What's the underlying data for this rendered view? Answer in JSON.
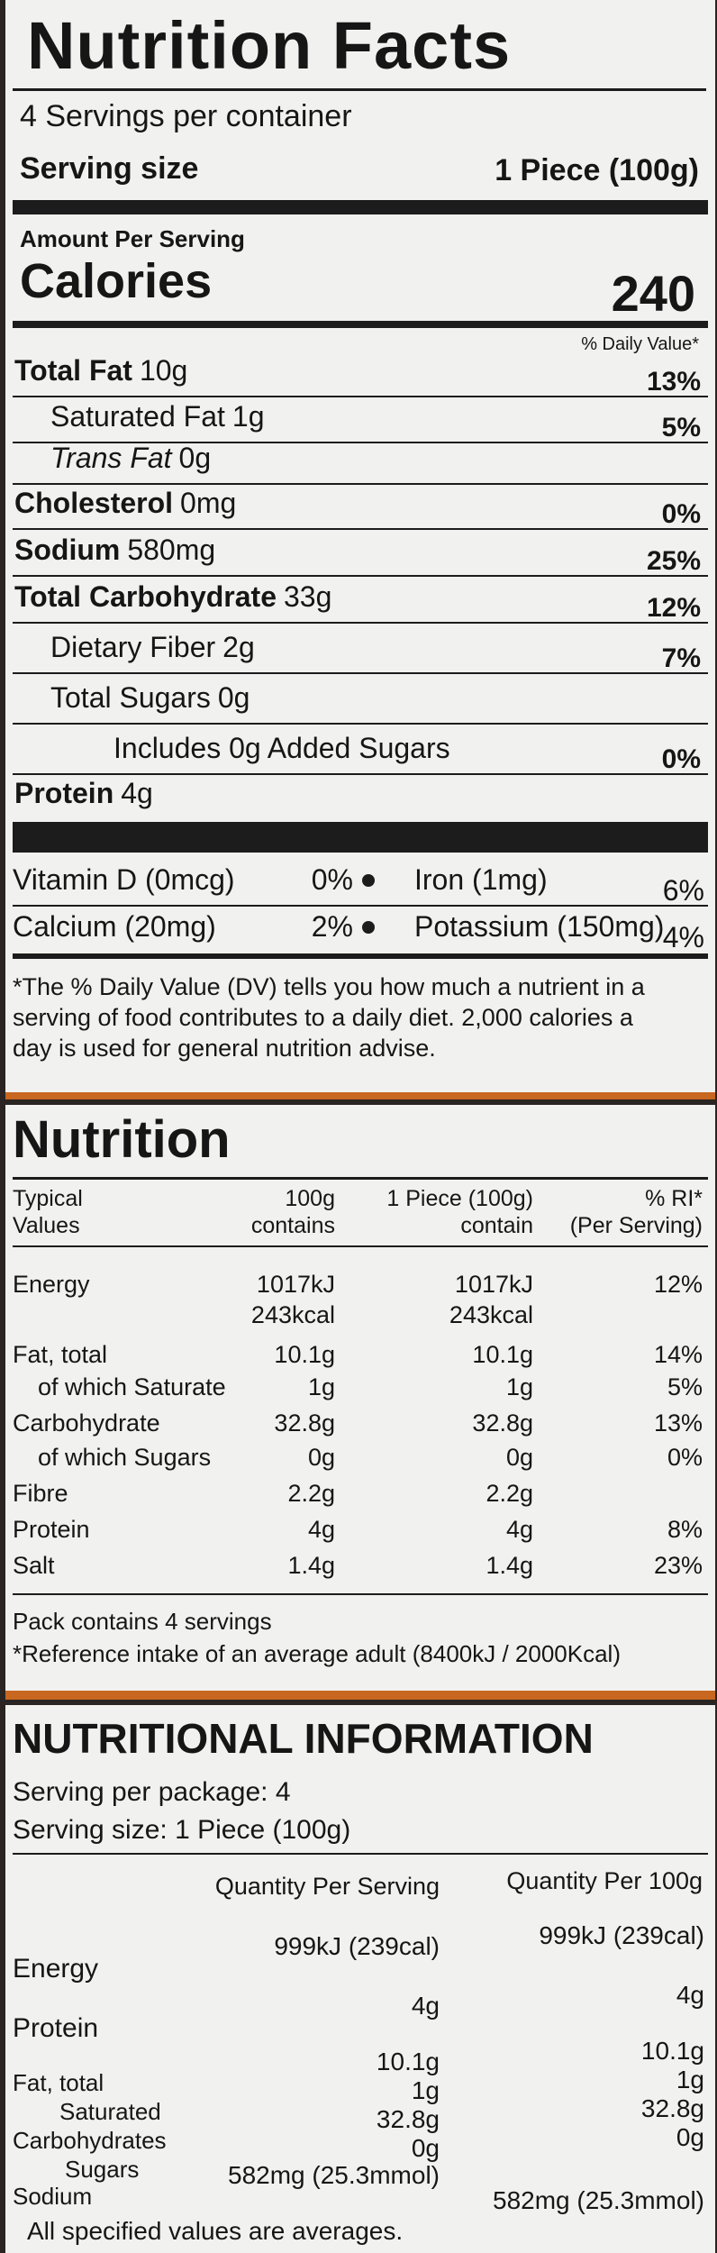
{
  "nutrition_facts": {
    "title": "Nutrition Facts",
    "servings_per_container": "4 Servings per container",
    "serving_size_label": "Serving size",
    "serving_size_value": "1 Piece (100g)",
    "amount_per_serving": "Amount Per Serving",
    "calories_label": "Calories",
    "calories_value": "240",
    "daily_value_header": "% Daily Value*",
    "rows": [
      {
        "label": "Total Fat",
        "amount": "10g",
        "dv": "13%"
      },
      {
        "label": "Saturated Fat",
        "amount": "1g",
        "dv": "5%"
      },
      {
        "label": "Trans Fat",
        "amount": "0g",
        "dv": null
      },
      {
        "label": "Cholesterol",
        "amount": "0mg",
        "dv": "0%"
      },
      {
        "label": "Sodium",
        "amount": "580mg",
        "dv": "25%"
      },
      {
        "label": "Total Carbohydrate",
        "amount": "33g",
        "dv": "12%"
      },
      {
        "label": "Dietary Fiber",
        "amount": "2g",
        "dv": "7%"
      },
      {
        "label": "Total Sugars",
        "amount": "0g",
        "dv": null
      },
      {
        "label": "Includes 0g Added Sugars",
        "amount": null,
        "dv": "0%"
      },
      {
        "label": "Protein",
        "amount": "4g",
        "dv": null
      }
    ],
    "micronutrients": [
      [
        {
          "name": "Vitamin D (0mcg)",
          "dv": "0%"
        },
        {
          "name": "Iron (1mg)",
          "dv": "6%"
        }
      ],
      [
        {
          "name": "Calcium (20mg)",
          "dv": "2%"
        },
        {
          "name": "Potassium (150mg)",
          "dv": "4%"
        }
      ]
    ],
    "footnote": [
      "*The % Daily Value (DV) tells you how much a nutrient in a",
      "serving of food contributes to a daily diet. 2,000 calories a",
      "day is used for general nutrition advise."
    ]
  },
  "nutrition": {
    "title": "Nutrition",
    "header": [
      [
        "Typical",
        "Values"
      ],
      [
        "100g",
        "contains"
      ],
      [
        "1 Piece (100g)",
        "contain"
      ],
      [
        "% RI*",
        "(Per Serving)"
      ]
    ],
    "rows": [
      [
        "Energy",
        "1017kJ",
        "1017kJ",
        "12%"
      ],
      [
        null,
        "243kcal",
        "243kcal",
        null
      ],
      [
        "Fat, total",
        "10.1g",
        "10.1g",
        "14%"
      ],
      [
        "of which Saturate",
        "1g",
        "1g",
        "5%"
      ],
      [
        "Carbohydrate",
        "32.8g",
        "32.8g",
        "13%"
      ],
      [
        "of which Sugars",
        "0g",
        "0g",
        "0%"
      ],
      [
        "Fibre",
        "2.2g",
        "2.2g",
        null
      ],
      [
        "Protein",
        "4g",
        "4g",
        "8%"
      ],
      [
        "Salt",
        "1.4g",
        "1.4g",
        "23%"
      ]
    ],
    "notes": [
      "Pack contains 4 servings",
      "*Reference intake of an average adult (8400kJ / 2000Kcal)"
    ]
  },
  "nutritional_information": {
    "title": "NUTRITIONAL INFORMATION",
    "serving_per_package": "Serving per package: 4",
    "serving_size": "Serving size:  1 Piece (100g)",
    "header": [
      "Quantity Per Serving",
      "Quantity Per 100g"
    ],
    "rows": [
      [
        "Energy",
        "999kJ (239cal)",
        "999kJ (239cal)"
      ],
      [
        "Protein",
        "4g",
        "4g"
      ],
      [
        "Fat, total",
        "10.1g",
        "10.1g"
      ],
      [
        "Saturated",
        "1g",
        "1g"
      ],
      [
        "Carbohydrates",
        "32.8g",
        "32.8g"
      ],
      [
        "Sugars",
        "0g",
        "0g"
      ],
      [
        "Sodium",
        "582mg (25.3mmol)",
        "582mg (25.3mmol)"
      ]
    ],
    "footnote": "All specified values are averages."
  }
}
